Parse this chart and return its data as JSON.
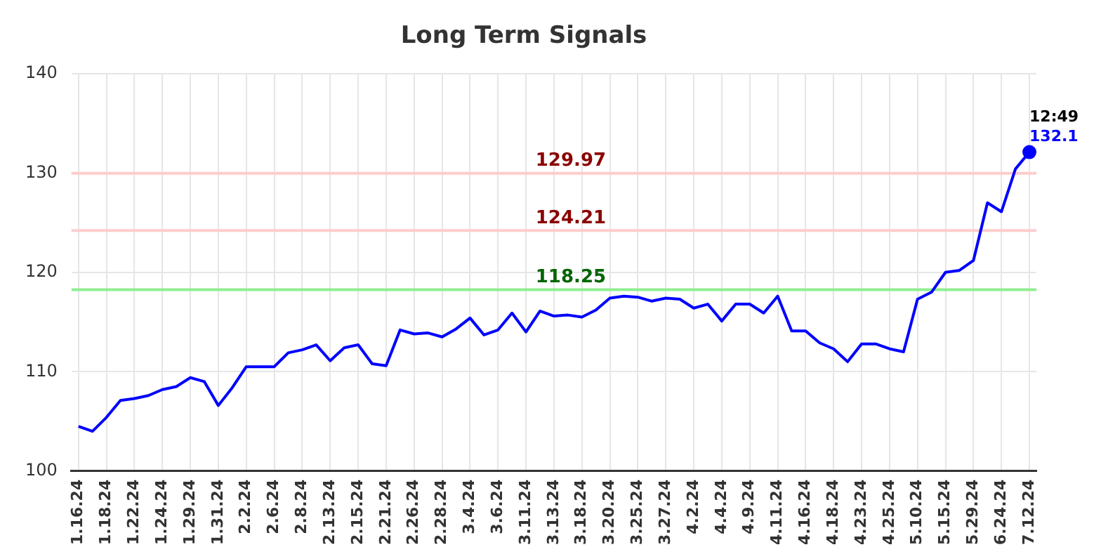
{
  "chart_data": {
    "type": "line",
    "title": "Long Term Signals",
    "categories": [
      "1.16.24",
      null,
      "1.18.24",
      null,
      "1.22.24",
      null,
      "1.24.24",
      null,
      "1.29.24",
      null,
      "1.31.24",
      null,
      "2.2.24",
      null,
      "2.6.24",
      null,
      "2.8.24",
      null,
      "2.13.24",
      null,
      "2.15.24",
      null,
      "2.21.24",
      null,
      "2.26.24",
      null,
      "2.28.24",
      null,
      "3.4.24",
      null,
      "3.6.24",
      null,
      "3.11.24",
      null,
      "3.13.24",
      null,
      "3.18.24",
      null,
      "3.20.24",
      null,
      "3.25.24",
      null,
      "3.27.24",
      null,
      "4.2.24",
      null,
      "4.4.24",
      null,
      "4.9.24",
      null,
      "4.11.24",
      null,
      "4.16.24",
      null,
      "4.18.24",
      null,
      "4.23.24",
      null,
      "4.25.24",
      null,
      "5.10.24",
      null,
      "5.15.24",
      null,
      "5.29.24",
      null,
      "6.24.24",
      null,
      "7.12.24"
    ],
    "series": [
      {
        "color": "#0000ff",
        "values": [
          104.5,
          104.0,
          105.4,
          107.1,
          107.3,
          107.6,
          108.2,
          108.5,
          109.4,
          109.0,
          106.6,
          108.4,
          110.5,
          110.5,
          110.5,
          111.9,
          112.2,
          112.7,
          111.1,
          112.4,
          112.7,
          110.8,
          110.6,
          114.2,
          113.8,
          113.9,
          113.5,
          114.3,
          115.4,
          113.7,
          114.2,
          115.9,
          114.0,
          116.1,
          115.6,
          115.7,
          115.5,
          116.2,
          117.4,
          117.6,
          117.5,
          117.1,
          117.4,
          117.3,
          116.4,
          116.8,
          115.1,
          116.8,
          116.8,
          115.9,
          117.6,
          114.1,
          114.1,
          112.9,
          112.3,
          111.0,
          112.8,
          112.8,
          112.3,
          112.0,
          117.3,
          118.0,
          120.0,
          120.2,
          121.2,
          127.0,
          126.1,
          130.4,
          132.1
        ],
        "value_labels": [
          null,
          null,
          null,
          null,
          null,
          null,
          null,
          null,
          null,
          null,
          null,
          null,
          null,
          null,
          null,
          null,
          null,
          null,
          null,
          null,
          null,
          null,
          null,
          null,
          null,
          null,
          null,
          null,
          null,
          null,
          null,
          null,
          null,
          null,
          null,
          null,
          null,
          null,
          null,
          null,
          null,
          null,
          null,
          null,
          null,
          null,
          null,
          null,
          null,
          null,
          null,
          null,
          null,
          null,
          null,
          null,
          null,
          null,
          null,
          null,
          null,
          null,
          null,
          null,
          null,
          null,
          null,
          null,
          "132.1"
        ]
      }
    ],
    "ylim": [
      100,
      140
    ],
    "yticks": [
      100,
      110,
      120,
      130,
      140
    ],
    "grid": true,
    "marker": "none",
    "ref_lines": [
      {
        "axis": "y",
        "value": 129.97,
        "label": "129.97",
        "color": "#ffcccc"
      },
      {
        "axis": "y",
        "value": 124.21,
        "label": "124.21",
        "color": "#ffcccc"
      },
      {
        "axis": "y",
        "value": 118.25,
        "label": "118.25",
        "color": "#90ee90"
      }
    ],
    "annotations": [
      {
        "text": "12:49",
        "x": "7.12.24",
        "y": 132.1
      }
    ]
  }
}
